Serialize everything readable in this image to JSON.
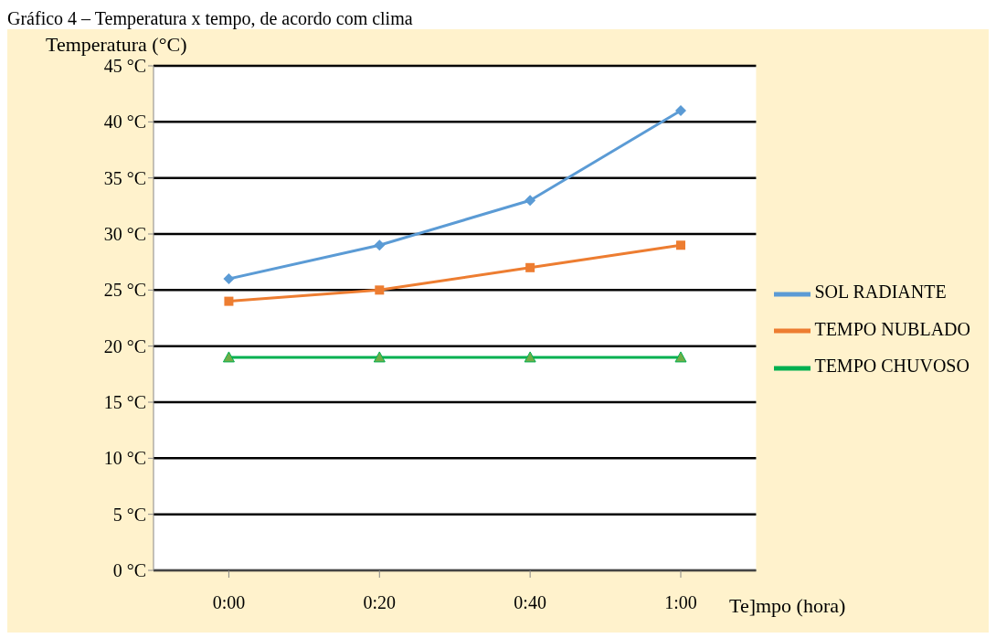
{
  "chart_data": {
    "type": "line",
    "title": "Gráfico 4 – Temperatura x tempo, de acordo com clima",
    "ylabel": "Temperatura (°C)",
    "xlabel": "Te]mpo (hora)",
    "categories": [
      "0:00",
      "0:20",
      "0:40",
      "1:00"
    ],
    "series": [
      {
        "name": "SOL RADIANTE",
        "color": "#5b9bd5",
        "marker": "diamond",
        "values": [
          26,
          29,
          33,
          41
        ]
      },
      {
        "name": "TEMPO NUBLADO",
        "color": "#ed7d31",
        "marker": "square",
        "values": [
          24,
          25,
          27,
          29
        ]
      },
      {
        "name": "TEMPO CHUVOSO",
        "color": "#00b050",
        "marker": "triangle",
        "values": [
          19,
          19,
          19,
          19
        ]
      }
    ],
    "ylim": [
      0,
      45
    ],
    "yticks": [
      {
        "value": 0,
        "label": "0 °C"
      },
      {
        "value": 5,
        "label": "5 °C"
      },
      {
        "value": 10,
        "label": "10 °C"
      },
      {
        "value": 15,
        "label": "15 °C"
      },
      {
        "value": 20,
        "label": "20 °C"
      },
      {
        "value": 25,
        "label": "25 °C"
      },
      {
        "value": 30,
        "label": "30 °C"
      },
      {
        "value": 35,
        "label": "35 °C"
      },
      {
        "value": 40,
        "label": "40 °C"
      },
      {
        "value": 45,
        "label": "45 °C"
      }
    ],
    "grid": "y",
    "legend": "right"
  }
}
